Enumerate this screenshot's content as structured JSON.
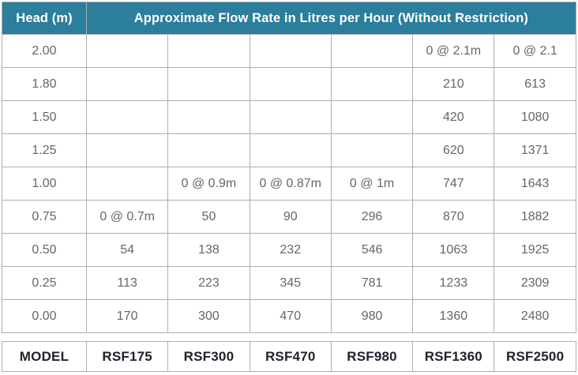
{
  "colors": {
    "accent_teal": "#2b7e9c",
    "grid_line": "#aeaeae",
    "body_text": "#666666",
    "model_text": "#1e222b",
    "header_text": "#ffffff"
  },
  "header": {
    "head_label": "Head (m)",
    "flow_label": "Approximate Flow Rate in Litres per Hour (Without Restriction)"
  },
  "rows": [
    {
      "head": "2.00",
      "values": [
        "",
        "",
        "",
        "",
        "0 @ 2.1m",
        "0 @ 2.1"
      ]
    },
    {
      "head": "1.80",
      "values": [
        "",
        "",
        "",
        "",
        "210",
        "613"
      ]
    },
    {
      "head": "1.50",
      "values": [
        "",
        "",
        "",
        "",
        "420",
        "1080"
      ]
    },
    {
      "head": "1.25",
      "values": [
        "",
        "",
        "",
        "",
        "620",
        "1371"
      ]
    },
    {
      "head": "1.00",
      "values": [
        "",
        "0 @ 0.9m",
        "0 @ 0.87m",
        "0 @ 1m",
        "747",
        "1643"
      ]
    },
    {
      "head": "0.75",
      "values": [
        "0 @ 0.7m",
        "50",
        "90",
        "296",
        "870",
        "1882"
      ]
    },
    {
      "head": "0.50",
      "values": [
        "54",
        "138",
        "232",
        "546",
        "1063",
        "1925"
      ]
    },
    {
      "head": "0.25",
      "values": [
        "113",
        "223",
        "345",
        "781",
        "1233",
        "2309"
      ]
    },
    {
      "head": "0.00",
      "values": [
        "170",
        "300",
        "470",
        "980",
        "1360",
        "2480"
      ]
    }
  ],
  "model_row": {
    "label": "MODEL",
    "models": [
      "RSF175",
      "RSF300",
      "RSF470",
      "RSF980",
      "RSF1360",
      "RSF2500"
    ]
  }
}
